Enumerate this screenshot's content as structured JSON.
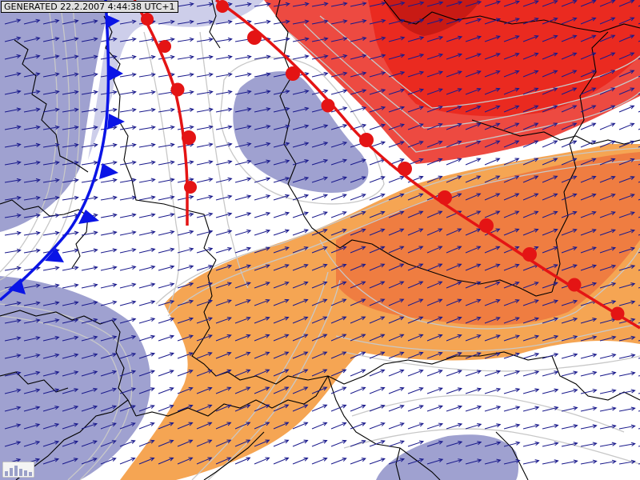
{
  "timestamp": "GENERATED 22.2.2007 4:44:38 UTC+1",
  "colors": {
    "background": "#ffffff",
    "low_zone": "#9a9ccd",
    "low_zone_light": "#c8c9e8",
    "warm_orange": "#f4a04a",
    "warm_orange_mid": "#ee7a40",
    "warm_red": "#ea2a20",
    "warm_dark_red": "#c81a14",
    "isoline": "#c8c8c8",
    "border_line": "#000000",
    "wind_arrow": "#1a1a8c",
    "cold_front": "#0a14e6",
    "warm_front": "#e41414"
  },
  "fronts": [
    {
      "type": "cold",
      "symbol": "triangles"
    },
    {
      "type": "warm",
      "symbol": "semicircles"
    },
    {
      "type": "warm",
      "symbol": "semicircles"
    }
  ],
  "wind_field": {
    "direction": "east-northeast"
  },
  "icons": [
    "legend-bars-icon"
  ]
}
